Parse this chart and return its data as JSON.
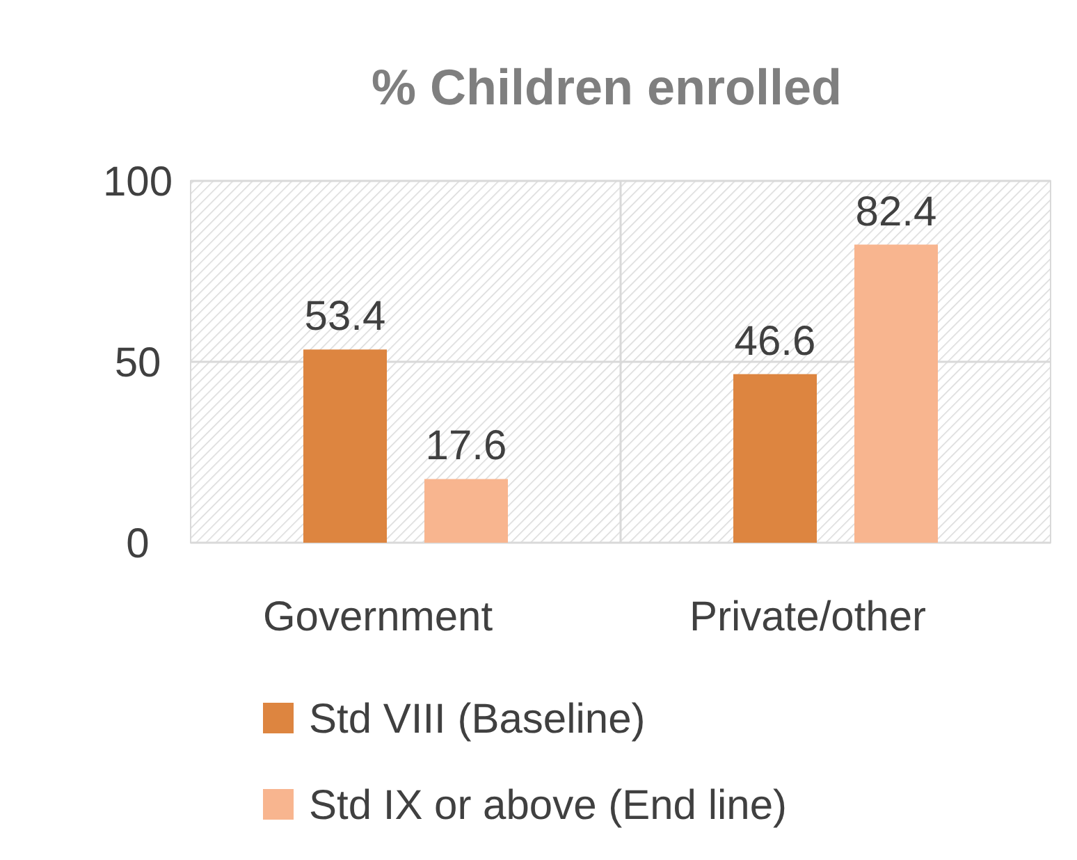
{
  "chart_data": {
    "type": "bar",
    "title": "% Children enrolled",
    "categories": [
      "Government",
      "Private/other"
    ],
    "series": [
      {
        "name": "Std VIII (Baseline)",
        "color": "#dd8540",
        "values": [
          53.4,
          46.6
        ]
      },
      {
        "name": "Std IX or above (End line)",
        "color": "#f8b58f",
        "values": [
          17.6,
          82.4
        ]
      }
    ],
    "ylim": [
      0,
      100
    ],
    "yticks": [
      0,
      50,
      100
    ],
    "grid": true,
    "legend": "bottom",
    "data_labels": true
  }
}
